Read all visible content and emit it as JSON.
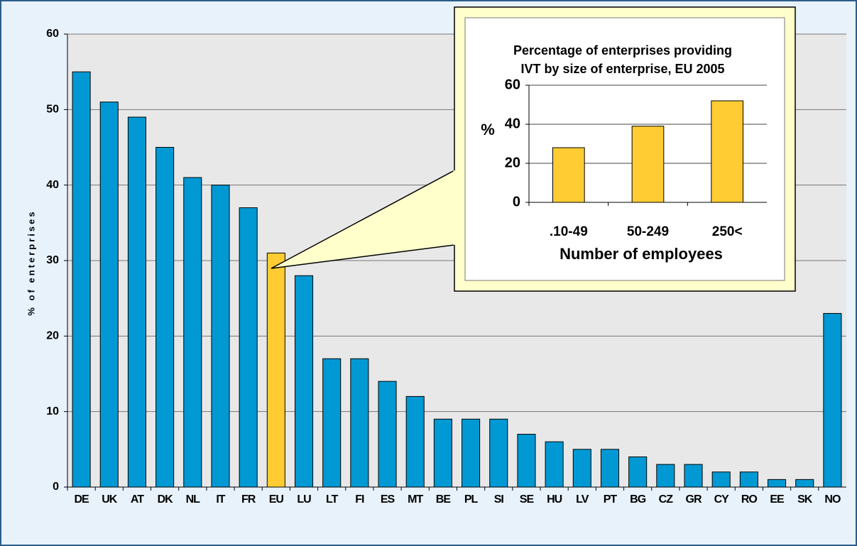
{
  "chart_data": [
    {
      "type": "bar",
      "ylabel": "% of enterprises",
      "categories": [
        "DE",
        "UK",
        "AT",
        "DK",
        "NL",
        "IT",
        "FR",
        "EU",
        "LU",
        "LT",
        "FI",
        "ES",
        "MT",
        "BE",
        "PL",
        "SI",
        "SE",
        "HU",
        "LV",
        "PT",
        "BG",
        "CZ",
        "GR",
        "CY",
        "RO",
        "EE",
        "SK",
        "NO"
      ],
      "values": [
        55,
        51,
        49,
        45,
        41,
        40,
        37,
        31,
        28,
        17,
        17,
        14,
        12,
        9,
        9,
        9,
        7,
        6,
        5,
        5,
        4,
        3,
        3,
        2,
        2,
        1,
        1,
        23
      ],
      "colors": [
        "#0099d4",
        "#0099d4",
        "#0099d4",
        "#0099d4",
        "#0099d4",
        "#0099d4",
        "#0099d4",
        "#ffcc33",
        "#0099d4",
        "#0099d4",
        "#0099d4",
        "#0099d4",
        "#0099d4",
        "#0099d4",
        "#0099d4",
        "#0099d4",
        "#0099d4",
        "#0099d4",
        "#0099d4",
        "#0099d4",
        "#0099d4",
        "#0099d4",
        "#0099d4",
        "#0099d4",
        "#0099d4",
        "#0099d4",
        "#0099d4",
        "#0099d4"
      ],
      "ylim": [
        0,
        60
      ],
      "yticks": [
        0,
        10,
        20,
        30,
        40,
        50,
        60
      ],
      "grid": true
    },
    {
      "type": "bar",
      "title": [
        "Percentage of enterprises providing",
        "IVT by size of enterprise, EU 2005"
      ],
      "ylabel": "%",
      "xlabel": "Number of employees",
      "categories": [
        ".10-49",
        "50-249",
        "250<"
      ],
      "values": [
        28,
        39,
        52
      ],
      "color": "#ffcc33",
      "ylim": [
        0,
        60
      ],
      "yticks": [
        0,
        20,
        40,
        60
      ],
      "grid": true
    }
  ]
}
